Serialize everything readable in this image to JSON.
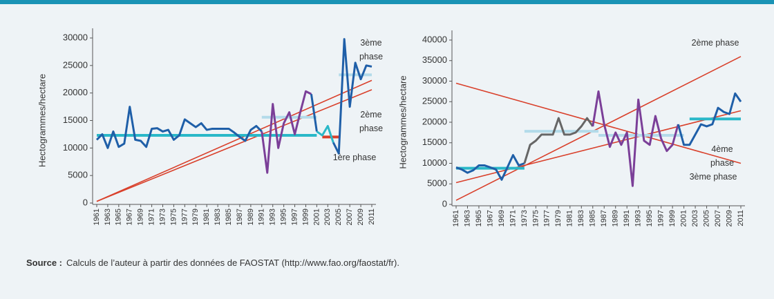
{
  "chart_data": [
    {
      "type": "line",
      "ylabel": "Hectogrammes/hectare",
      "xlim": [
        1961,
        2011
      ],
      "ylim": [
        0,
        30000
      ],
      "yticks": [
        0,
        5000,
        10000,
        15000,
        20000,
        25000,
        30000
      ],
      "xticks": [
        1961,
        1963,
        1965,
        1967,
        1969,
        1971,
        1973,
        1975,
        1977,
        1979,
        1981,
        1983,
        1985,
        1987,
        1989,
        1991,
        1993,
        1995,
        1997,
        1999,
        2001,
        2003,
        2005,
        2007,
        2009,
        2011
      ],
      "series": [
        {
          "color": "#d9402b",
          "line_width": 1.6,
          "x": [
            1961,
            2011
          ],
          "values": [
            300,
            22300
          ]
        },
        {
          "color": "#d9402b",
          "line_width": 1.6,
          "x": [
            1961,
            2011
          ],
          "values": [
            300,
            20600
          ]
        },
        {
          "color": "#2ab8c8",
          "line_width": 4,
          "x": [
            1961,
            2001
          ],
          "values": [
            12300,
            12300
          ]
        },
        {
          "color": "#b3dbea",
          "line_width": 4,
          "x": [
            1991,
            2001
          ],
          "values": [
            15600,
            15600
          ]
        },
        {
          "color": "#d9402b",
          "line_width": 4,
          "x": [
            2002,
            2005
          ],
          "values": [
            12000,
            12000
          ]
        },
        {
          "color": "#b3dbea",
          "line_width": 4,
          "x": [
            2005,
            2011
          ],
          "values": [
            23300,
            23300
          ]
        },
        {
          "color": "#1f5fa8",
          "line_width": 3,
          "x": [
            1961,
            1962,
            1963,
            1964,
            1965,
            1966,
            1967,
            1968,
            1969,
            1970,
            1971,
            1972,
            1973,
            1974,
            1975,
            1976,
            1977,
            1978,
            1979,
            1980,
            1981,
            1982,
            1983,
            1984,
            1985,
            1986,
            1987,
            1988,
            1989,
            1990,
            1991
          ],
          "values": [
            11500,
            12500,
            10000,
            13000,
            10200,
            10800,
            17500,
            11500,
            11300,
            10200,
            13500,
            13600,
            13000,
            13300,
            11500,
            12300,
            15200,
            14500,
            13800,
            14500,
            13300,
            13500,
            13500,
            13500,
            13500,
            12800,
            12000,
            11300,
            13300,
            14000,
            13000
          ]
        },
        {
          "color": "#7b3f98",
          "line_width": 3,
          "x": [
            1991,
            1992,
            1993,
            1994,
            1995,
            1996,
            1997,
            1998,
            1999,
            2000
          ],
          "values": [
            13000,
            5500,
            18000,
            10000,
            14500,
            16500,
            12500,
            16500,
            20300,
            19800
          ]
        },
        {
          "color": "#1f5fa8",
          "line_width": 3,
          "x": [
            2000,
            2001
          ],
          "values": [
            19800,
            13000
          ]
        },
        {
          "color": "#2ab8c8",
          "line_width": 3,
          "x": [
            2001,
            2002,
            2003,
            2004
          ],
          "values": [
            13000,
            12300,
            14000,
            11000
          ]
        },
        {
          "color": "#1f5fa8",
          "line_width": 3,
          "x": [
            2004,
            2005,
            2006,
            2007,
            2008,
            2009,
            2010,
            2011
          ],
          "values": [
            11000,
            9000,
            29800,
            17500,
            25500,
            22500,
            25000,
            24800
          ]
        }
      ],
      "annotations": [
        "3ème phase",
        "2ème phase",
        "1ère phase"
      ]
    },
    {
      "type": "line",
      "ylabel": "Hectogrammes/hectare",
      "xlim": [
        1961,
        2011
      ],
      "ylim": [
        0,
        40000
      ],
      "yticks": [
        0,
        5000,
        10000,
        15000,
        20000,
        25000,
        30000,
        35000,
        40000
      ],
      "xticks": [
        1961,
        1963,
        1965,
        1967,
        1969,
        1971,
        1973,
        1975,
        1977,
        1979,
        1981,
        1983,
        1985,
        1987,
        1989,
        1991,
        1993,
        1995,
        1997,
        1999,
        2001,
        2003,
        2005,
        2007,
        2009,
        2011
      ],
      "series": [
        {
          "color": "#d9402b",
          "line_width": 1.6,
          "x": [
            1961,
            2011
          ],
          "values": [
            29500,
            10000
          ]
        },
        {
          "color": "#d9402b",
          "line_width": 1.6,
          "x": [
            1961,
            2011
          ],
          "values": [
            5300,
            22800
          ]
        },
        {
          "color": "#d9402b",
          "line_width": 1.6,
          "x": [
            1961,
            2011
          ],
          "values": [
            1000,
            36000
          ]
        },
        {
          "color": "#2ab8c8",
          "line_width": 4,
          "x": [
            1961,
            1973
          ],
          "values": [
            8800,
            8800
          ]
        },
        {
          "color": "#b3dbea",
          "line_width": 4,
          "x": [
            1973,
            1986
          ],
          "values": [
            17800,
            17800
          ]
        },
        {
          "color": "#b3dbea",
          "line_width": 4,
          "x": [
            1986,
            2001
          ],
          "values": [
            16800,
            16800
          ]
        },
        {
          "color": "#2ab8c8",
          "line_width": 4,
          "x": [
            2002,
            2011
          ],
          "values": [
            20800,
            20800
          ]
        },
        {
          "color": "#1f5fa8",
          "line_width": 3,
          "x": [
            1961,
            1962,
            1963,
            1964,
            1965,
            1966,
            1967,
            1968,
            1969,
            1970,
            1971,
            1972,
            1973
          ],
          "values": [
            9000,
            8500,
            7700,
            8300,
            9500,
            9500,
            9000,
            8500,
            6000,
            9000,
            12000,
            9500,
            10000
          ]
        },
        {
          "color": "#666666",
          "line_width": 3,
          "x": [
            1973,
            1974,
            1975,
            1976,
            1977,
            1978,
            1979,
            1980,
            1981,
            1982,
            1983,
            1984,
            1985
          ],
          "values": [
            10000,
            14500,
            15500,
            17000,
            17000,
            17000,
            21000,
            17000,
            17000,
            17500,
            19000,
            21000,
            19000
          ]
        },
        {
          "color": "#7b3f98",
          "line_width": 3,
          "x": [
            1985,
            1986,
            1987,
            1988,
            1989,
            1990,
            1991,
            1992,
            1993,
            1994,
            1995,
            1996,
            1997,
            1998,
            1999,
            2000
          ],
          "values": [
            19000,
            27500,
            19500,
            14000,
            17500,
            14500,
            17500,
            4500,
            25500,
            15500,
            14500,
            21500,
            16000,
            13000,
            14500,
            19500
          ]
        },
        {
          "color": "#1f5fa8",
          "line_width": 3,
          "x": [
            2000,
            2001,
            2002,
            2003,
            2004,
            2005,
            2006,
            2007,
            2008,
            2009,
            2010,
            2011
          ],
          "values": [
            19500,
            14500,
            14500,
            17000,
            19500,
            19000,
            19500,
            23500,
            22500,
            22000,
            27000,
            25000
          ]
        }
      ],
      "annotations": [
        "2ème phase",
        "4ème phase",
        "3ème phase"
      ]
    }
  ],
  "source": {
    "label": "Source :",
    "text": "Calculs de l’auteur à partir des données de FAOSTAT (http://www.fao.org/faostat/fr)."
  }
}
